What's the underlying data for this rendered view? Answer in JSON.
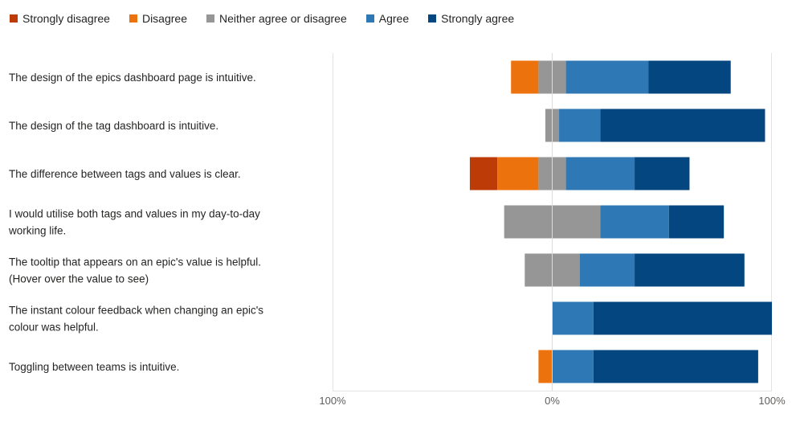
{
  "legend": [
    {
      "label": "Strongly disagree",
      "color": "#BD3B06"
    },
    {
      "label": "Disagree",
      "color": "#EB720C"
    },
    {
      "label": "Neither agree or disagree",
      "color": "#969696"
    },
    {
      "label": "Agree",
      "color": "#2E79B5"
    },
    {
      "label": "Strongly agree",
      "color": "#04467F"
    }
  ],
  "chart_data": {
    "type": "bar",
    "orientation": "horizontal",
    "stacking": "diverging",
    "xlim": [
      -100,
      100
    ],
    "x_tick_labels": [
      "100%",
      "0%",
      "100%"
    ],
    "grid": false,
    "legend_position": "top",
    "categories": [
      "The design of the epics dashboard page is intuitive.",
      "The design of the tag dashboard is intuitive.",
      "The difference between tags and values is clear.",
      "I would utilise both tags and values in my day-to-day working life.",
      "The tooltip that appears on an epic's value is helpful. (Hover over the value to see)",
      "The instant colour feedback when changing an epic's colour was helpful.",
      "Toggling between teams is intuitive."
    ],
    "category_lines": [
      [
        "The design of the epics dashboard page is intuitive."
      ],
      [
        "The design of the tag dashboard is intuitive."
      ],
      [
        "The difference between tags and values is clear."
      ],
      [
        "I would utilise both tags and values in my day-to-day",
        "working life."
      ],
      [
        "The tooltip that appears on an epic's value is helpful.",
        "(Hover over the value to see)"
      ],
      [
        "The instant colour feedback when changing an epic's",
        "colour was helpful."
      ],
      [
        "Toggling between teams is intuitive."
      ]
    ],
    "series": [
      {
        "name": "Strongly disagree",
        "values": [
          0,
          0,
          12.5,
          0,
          0,
          0,
          0
        ]
      },
      {
        "name": "Disagree",
        "values": [
          12.5,
          0,
          18.75,
          0,
          0,
          0,
          6.25
        ]
      },
      {
        "name": "Neither agree or disagree",
        "values": [
          12.5,
          6.25,
          12.5,
          43.75,
          25,
          0,
          0
        ]
      },
      {
        "name": "Agree",
        "values": [
          37.5,
          18.75,
          31.25,
          31.25,
          25,
          18.75,
          18.75
        ]
      },
      {
        "name": "Strongly agree",
        "values": [
          37.5,
          75,
          25,
          25,
          50,
          81.25,
          75
        ]
      }
    ]
  }
}
